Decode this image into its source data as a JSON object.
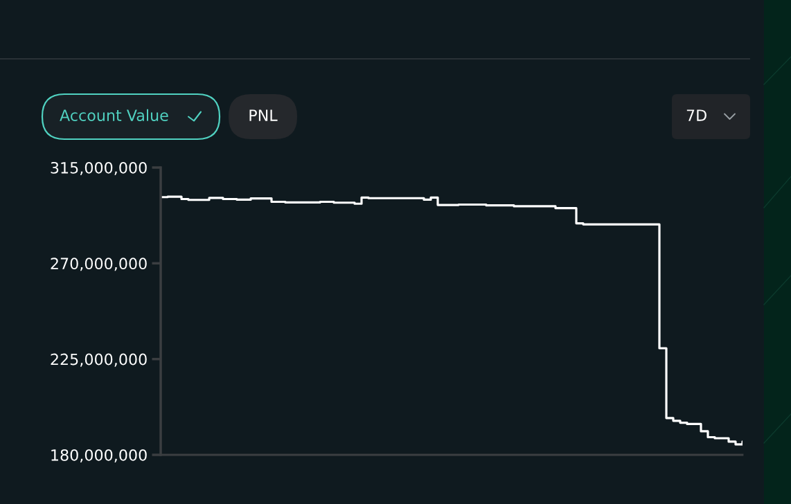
{
  "chart_data": {
    "type": "step",
    "annotations": [
      "Account Value",
      "PNL",
      "7D"
    ],
    "categories": [
      null,
      null,
      null,
      null,
      null,
      null,
      null,
      null,
      null,
      null,
      null,
      null,
      null,
      null,
      null,
      null,
      null,
      null,
      null,
      null,
      null,
      null,
      null,
      null,
      null,
      null,
      null,
      null,
      null,
      null,
      null,
      null,
      null,
      null,
      null,
      null,
      null,
      null,
      null,
      null,
      null,
      null,
      null,
      null,
      null,
      null,
      null,
      null,
      null,
      null,
      null,
      null,
      null,
      null,
      null,
      null,
      null,
      null,
      null,
      null,
      null,
      null,
      null,
      null,
      null,
      null,
      null,
      null,
      null,
      null,
      null,
      null,
      null,
      null,
      null,
      null,
      null,
      null,
      null,
      null,
      null,
      null,
      null,
      null,
      null
    ],
    "series": [
      {
        "color": "#ffffff",
        "values": [
          301100000,
          301300000,
          301300000,
          300200000,
          299800000,
          299800000,
          299800000,
          300700000,
          300700000,
          300200000,
          300200000,
          299900000,
          299900000,
          300500000,
          300500000,
          300500000,
          298900000,
          298900000,
          298600000,
          298600000,
          298600000,
          298600000,
          298600000,
          298900000,
          298900000,
          298500000,
          298500000,
          298500000,
          298000000,
          300900000,
          300600000,
          300600000,
          300600000,
          300600000,
          300600000,
          300600000,
          300600000,
          300600000,
          299900000,
          300900000,
          297400000,
          297400000,
          297400000,
          297600000,
          297600000,
          297600000,
          297600000,
          297200000,
          297200000,
          297200000,
          297200000,
          296800000,
          296800000,
          296800000,
          296800000,
          296800000,
          296800000,
          295900000,
          295900000,
          295900000,
          288800000,
          288300000,
          288300000,
          288300000,
          288300000,
          288300000,
          288300000,
          288300000,
          288300000,
          288300000,
          288300000,
          288300000,
          230100000,
          197300000,
          196000000,
          195100000,
          194500000,
          194500000,
          191100000,
          188300000,
          187800000,
          187800000,
          186200000,
          184900000,
          186200000
        ]
      }
    ],
    "ylim": [
      180000000,
      315000000
    ],
    "yticks": [
      {
        "value": 180000000,
        "label": "180,000,000"
      },
      {
        "value": 225000000,
        "label": "225,000,000"
      },
      {
        "value": 270000000,
        "label": "270,000,000"
      },
      {
        "value": 315000000,
        "label": "315,000,000"
      }
    ],
    "tick_labels": "y"
  }
}
